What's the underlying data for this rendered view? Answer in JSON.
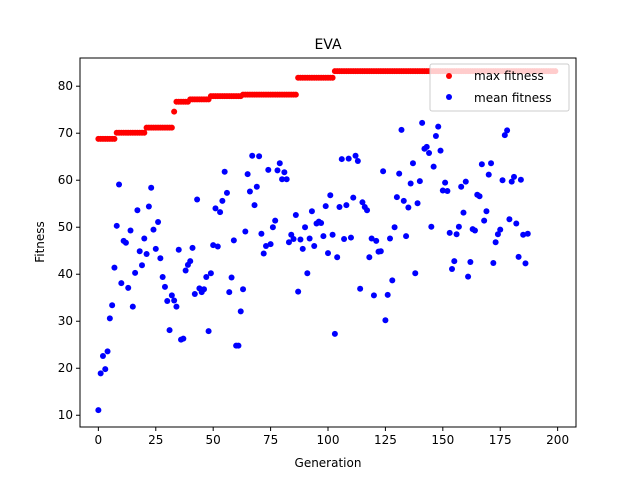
{
  "chart_data": {
    "type": "scatter",
    "title": "EVA",
    "xlabel": "Generation",
    "ylabel": "Fitness",
    "xlim": [
      -8,
      208
    ],
    "ylim": [
      7.5,
      86
    ],
    "xticks": [
      0,
      25,
      50,
      75,
      100,
      125,
      150,
      175,
      200
    ],
    "yticks": [
      10,
      20,
      30,
      40,
      50,
      60,
      70,
      80
    ],
    "grid": false,
    "legend_position": "top-right",
    "series": [
      {
        "name": "max fitness",
        "color": "#ff0000",
        "segments": [
          {
            "x_start": 0,
            "x_end": 7,
            "y": 68.8
          },
          {
            "x_start": 8,
            "x_end": 20,
            "y": 70.1
          },
          {
            "x_start": 21,
            "x_end": 32,
            "y": 71.2
          },
          {
            "x_start": 33,
            "x_end": 33,
            "y": 74.6
          },
          {
            "x_start": 34,
            "x_end": 39,
            "y": 76.7
          },
          {
            "x_start": 40,
            "x_end": 48,
            "y": 77.2
          },
          {
            "x_start": 49,
            "x_end": 62,
            "y": 77.9
          },
          {
            "x_start": 63,
            "x_end": 86,
            "y": 78.2
          },
          {
            "x_start": 87,
            "x_end": 102,
            "y": 81.8
          },
          {
            "x_start": 103,
            "x_end": 199,
            "y": 83.2
          }
        ]
      },
      {
        "name": "mean fitness",
        "color": "#0000ff",
        "y": [
          11.1,
          18.9,
          22.6,
          19.8,
          23.6,
          30.6,
          33.4,
          41.4,
          50.3,
          59.1,
          38.1,
          47.1,
          46.7,
          37.1,
          49.3,
          33.1,
          40.3,
          53.6,
          44.9,
          41.9,
          47.6,
          44.3,
          54.4,
          58.4,
          49.5,
          45.4,
          51.1,
          43.4,
          39.4,
          37.3,
          34.3,
          28.1,
          35.5,
          34.4,
          33.1,
          45.2,
          26.1,
          26.3,
          40.8,
          42.0,
          42.8,
          45.6,
          35.8,
          55.9,
          37.0,
          36.2,
          36.8,
          39.4,
          27.9,
          40.2,
          46.2,
          54.0,
          45.9,
          53.2,
          55.6,
          61.8,
          57.3,
          36.2,
          39.3,
          47.2,
          24.8,
          24.8,
          32.1,
          36.8,
          49.1,
          61.3,
          57.6,
          65.2,
          54.7,
          58.6,
          65.1,
          48.6,
          44.4,
          46.0,
          62.2,
          46.4,
          50.0,
          51.4,
          62.1,
          63.6,
          60.2,
          61.7,
          60.2,
          46.8,
          48.4,
          47.5,
          52.6,
          36.3,
          47.4,
          45.4,
          50.0,
          40.2,
          47.6,
          53.4,
          46.0,
          50.8,
          51.2,
          50.9,
          48.1,
          54.5,
          44.5,
          56.8,
          48.4,
          27.3,
          43.6,
          54.3,
          64.5,
          47.5,
          54.7,
          64.6,
          47.8,
          56.3,
          65.2,
          64.1,
          36.9,
          55.3,
          54.3,
          53.6,
          43.6,
          47.6,
          35.5,
          47.1,
          44.8,
          44.9,
          61.9,
          30.2,
          35.6,
          47.6,
          38.7,
          50.0,
          56.4,
          61.4,
          70.7,
          55.6,
          48.1,
          54.2,
          59.3,
          63.6,
          40.2,
          55.1,
          59.8,
          72.2,
          66.7,
          67.1,
          65.8,
          50.1,
          62.9,
          69.4,
          71.4,
          66.3,
          57.8,
          59.5,
          57.7,
          48.8,
          41.1,
          42.8,
          48.5,
          50.1,
          58.6,
          53.1,
          59.7,
          39.5,
          42.6,
          49.6,
          49.3,
          56.9,
          56.6,
          63.4,
          51.4,
          53.4,
          61.2,
          63.6,
          42.4,
          46.8,
          48.5,
          49.5,
          60.0,
          69.6,
          70.6,
          51.7,
          59.7,
          60.7,
          50.8,
          43.7,
          60.1,
          48.4,
          42.3,
          48.6
        ]
      }
    ]
  }
}
